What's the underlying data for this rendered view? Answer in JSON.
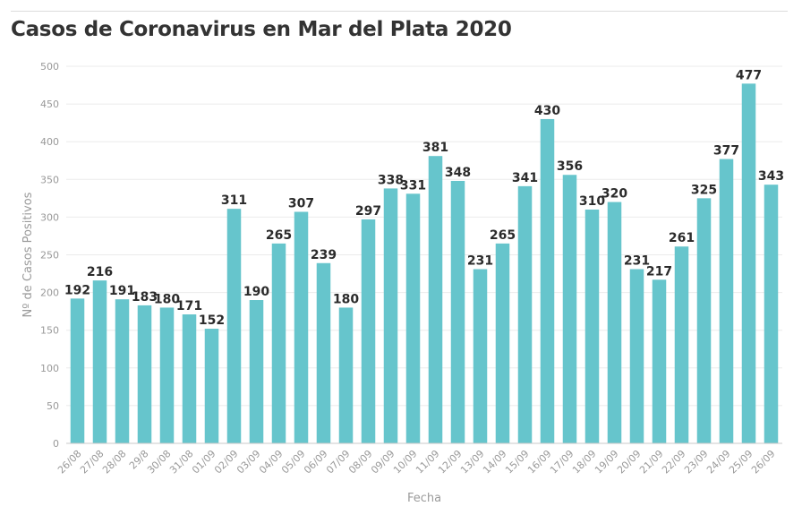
{
  "chart_data": {
    "type": "bar",
    "title": "Casos de Coronavirus en Mar del Plata 2020",
    "xlabel": "Fecha",
    "ylabel": "Nº de Casos Positivos",
    "ylim": [
      0,
      500
    ],
    "yticks": [
      0,
      50,
      100,
      150,
      200,
      250,
      300,
      350,
      400,
      450,
      500
    ],
    "grid": true,
    "bar_color": "#66c5cc",
    "categories": [
      "26/08",
      "27/08",
      "28/08",
      "29/8",
      "30/08",
      "31/08",
      "01/09",
      "02/09",
      "03/09",
      "04/09",
      "05/09",
      "06/09",
      "07/09",
      "08/09",
      "09/09",
      "10/09",
      "11/09",
      "12/09",
      "13/09",
      "14/09",
      "15/09",
      "16/09",
      "17/09",
      "18/09",
      "19/09",
      "20/09",
      "21/09",
      "22/09",
      "23/09",
      "24/09",
      "25/09",
      "26/09"
    ],
    "values": [
      192,
      216,
      191,
      183,
      180,
      171,
      152,
      311,
      190,
      265,
      307,
      239,
      180,
      297,
      338,
      331,
      381,
      348,
      231,
      265,
      341,
      430,
      356,
      310,
      320,
      231,
      217,
      261,
      325,
      377,
      477,
      343
    ]
  }
}
